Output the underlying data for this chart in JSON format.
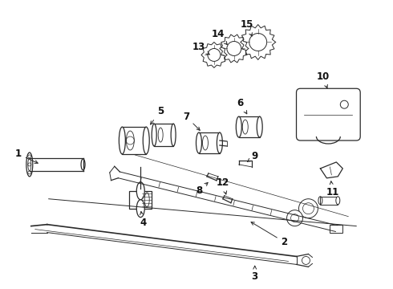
{
  "bg_color": "#ffffff",
  "line_color": "#2a2a2a",
  "label_color": "#111111",
  "label_fontsize": 8.5,
  "fig_width": 4.9,
  "fig_height": 3.6,
  "dpi": 100
}
